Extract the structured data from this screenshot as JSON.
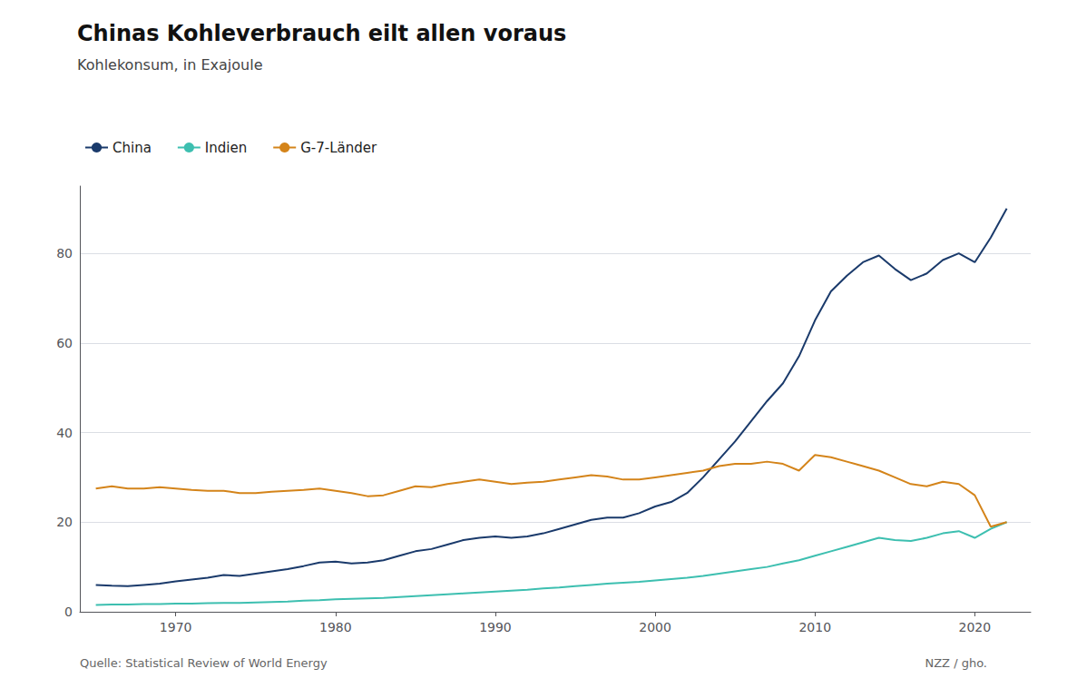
{
  "chart_data": {
    "type": "line",
    "title": "Chinas Kohleverbrauch eilt allen voraus",
    "subtitle": "Kohlekonsum, in Exajoule",
    "annotations": [
      "Quelle: Statistical Review of World Energy",
      "NZZ / gho."
    ],
    "x": [
      1965,
      1966,
      1967,
      1968,
      1969,
      1970,
      1971,
      1972,
      1973,
      1974,
      1975,
      1976,
      1977,
      1978,
      1979,
      1980,
      1981,
      1982,
      1983,
      1984,
      1985,
      1986,
      1987,
      1988,
      1989,
      1990,
      1991,
      1992,
      1993,
      1994,
      1995,
      1996,
      1997,
      1998,
      1999,
      2000,
      2001,
      2002,
      2003,
      2004,
      2005,
      2006,
      2007,
      2008,
      2009,
      2010,
      2011,
      2012,
      2013,
      2014,
      2015,
      2016,
      2017,
      2018,
      2019,
      2020,
      2021,
      2022
    ],
    "series": [
      {
        "name": "China",
        "color": "#1a3a6b",
        "values": [
          6.0,
          5.8,
          5.7,
          6.0,
          6.3,
          6.8,
          7.2,
          7.6,
          8.2,
          8.0,
          8.5,
          9.0,
          9.5,
          10.2,
          11.0,
          11.2,
          10.8,
          11.0,
          11.5,
          12.5,
          13.5,
          14.0,
          15.0,
          16.0,
          16.5,
          16.8,
          16.5,
          16.8,
          17.5,
          18.5,
          19.5,
          20.5,
          21.0,
          21.0,
          22.0,
          23.5,
          24.5,
          26.5,
          30.0,
          34.0,
          38.0,
          42.5,
          47.0,
          51.0,
          57.0,
          65.0,
          71.5,
          75.0,
          78.0,
          79.5,
          76.5,
          74.0,
          75.5,
          78.5,
          80.0,
          78.0,
          83.5,
          90.0
        ]
      },
      {
        "name": "Indien",
        "color": "#3dbfb0",
        "values": [
          1.5,
          1.6,
          1.6,
          1.7,
          1.7,
          1.8,
          1.8,
          1.9,
          2.0,
          2.0,
          2.1,
          2.2,
          2.3,
          2.5,
          2.6,
          2.8,
          2.9,
          3.0,
          3.1,
          3.3,
          3.5,
          3.7,
          3.9,
          4.1,
          4.3,
          4.5,
          4.7,
          4.9,
          5.2,
          5.4,
          5.7,
          6.0,
          6.3,
          6.5,
          6.7,
          7.0,
          7.3,
          7.6,
          8.0,
          8.5,
          9.0,
          9.5,
          10.0,
          10.8,
          11.5,
          12.5,
          13.5,
          14.5,
          15.5,
          16.5,
          16.0,
          15.8,
          16.5,
          17.5,
          18.0,
          16.5,
          18.5,
          20.0
        ]
      },
      {
        "name": "G-7-Länder",
        "color": "#d4841a",
        "values": [
          27.5,
          28.0,
          27.5,
          27.5,
          27.8,
          27.5,
          27.2,
          27.0,
          27.0,
          26.5,
          26.5,
          26.8,
          27.0,
          27.2,
          27.5,
          27.0,
          26.5,
          25.8,
          26.0,
          27.0,
          28.0,
          27.8,
          28.5,
          29.0,
          29.5,
          29.0,
          28.5,
          28.8,
          29.0,
          29.5,
          30.0,
          30.5,
          30.2,
          29.5,
          29.5,
          30.0,
          30.5,
          31.0,
          31.5,
          32.5,
          33.0,
          33.0,
          33.5,
          33.0,
          31.5,
          35.0,
          34.5,
          33.5,
          32.5,
          31.5,
          30.0,
          28.5,
          28.0,
          29.0,
          28.5,
          26.0,
          19.0,
          20.0
        ]
      }
    ],
    "xlim": [
      1964,
      2023.5
    ],
    "xticks": [
      1970,
      1980,
      1990,
      2000,
      2010,
      2020
    ],
    "ylim": [
      0,
      95
    ],
    "yticks": [
      0,
      20,
      40,
      60,
      80
    ],
    "grid": true,
    "legend": "top-left"
  }
}
